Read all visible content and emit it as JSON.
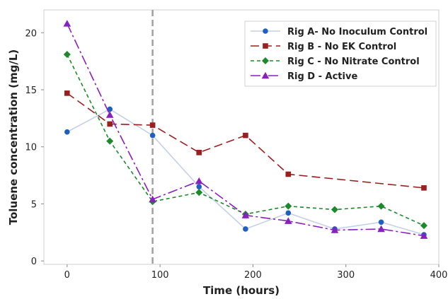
{
  "chart_data": {
    "type": "line",
    "xlabel": "Time (hours)",
    "ylabel": "Toluene concentration (mg/L)",
    "xlim": [
      -25,
      400
    ],
    "ylim": [
      -0.3,
      22
    ],
    "xticks": [
      0,
      100,
      200,
      300,
      400
    ],
    "yticks": [
      0,
      5,
      10,
      15,
      20
    ],
    "grid": false,
    "legend_position": "top-right",
    "vertical_reference_line": {
      "x": 92,
      "color": "#a0a0a0",
      "style": "dashed"
    },
    "series": [
      {
        "name": "Rig A- No Inoculum Control",
        "color": "#1f5fbf",
        "line_color": "#c5cfea",
        "marker": "circle",
        "dash": "solid",
        "x": [
          0,
          46,
          92,
          142,
          192,
          238,
          288,
          338,
          384
        ],
        "y": [
          11.3,
          13.3,
          11.0,
          6.5,
          2.8,
          4.2,
          2.8,
          3.4,
          2.3
        ]
      },
      {
        "name": "Rig B - No EK Control",
        "color": "#9c1f1f",
        "line_color": "#9c1f1f",
        "marker": "square",
        "dash": "12,6",
        "x": [
          0,
          46,
          92,
          142,
          192,
          238,
          384
        ],
        "y": [
          14.7,
          12.0,
          11.9,
          9.5,
          11.0,
          7.6,
          6.4
        ]
      },
      {
        "name": "Rig C - No Nitrate Control",
        "color": "#1a8a2a",
        "line_color": "#1a8a2a",
        "marker": "diamond",
        "dash": "5,4",
        "x": [
          0,
          46,
          92,
          142,
          192,
          238,
          288,
          338,
          384
        ],
        "y": [
          18.1,
          10.5,
          5.2,
          6.0,
          4.1,
          4.8,
          4.5,
          4.8,
          3.1
        ]
      },
      {
        "name": "Rig D - Active",
        "color": "#8a1fc0",
        "line_color": "#8a1fc0",
        "marker": "triangle",
        "dash": "14,4,3,4",
        "x": [
          0,
          46,
          92,
          142,
          192,
          238,
          288,
          338,
          384
        ],
        "y": [
          20.8,
          12.8,
          5.4,
          7.0,
          4.0,
          3.5,
          2.7,
          2.8,
          2.2
        ]
      }
    ]
  }
}
